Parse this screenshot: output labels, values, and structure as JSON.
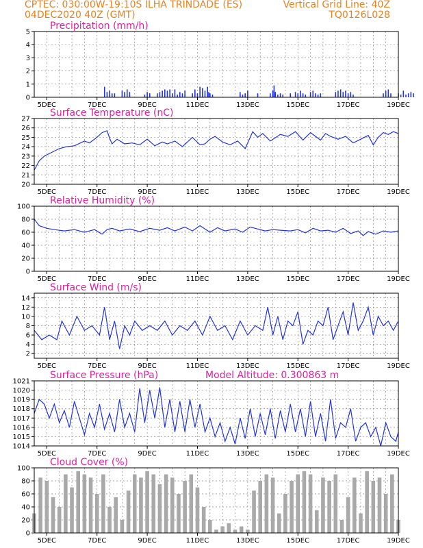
{
  "header": {
    "line1_left": "CPTEC:   030:00W-19:10S   ILHA TRINDADE (ES)",
    "line1_right": "Vertical Grid Line: 40Z",
    "line2_left": "04DEC2020  40Z  (GMT)",
    "line2_right": "TQ0126L028"
  },
  "colors": {
    "header": "#e8821e",
    "title": "#e020a0",
    "line": "#2233dd",
    "cloud": "#a9a9a9"
  },
  "chart_data": [
    {
      "type": "bar",
      "title": "Precipitation  (mm/h)",
      "ylim": [
        0,
        5
      ],
      "yticks": [
        0,
        1,
        2,
        3,
        4,
        5
      ],
      "x_range": [
        "04DEC2020 12Z",
        "19DEC2020 00Z"
      ],
      "xticks": [
        "5DEC",
        "7DEC",
        "9DEC",
        "11DEC",
        "13DEC",
        "15DEC",
        "17DEC",
        "19DEC"
      ],
      "grid": true,
      "x": [
        2.8,
        2.9,
        3.0,
        3.1,
        3.2,
        3.5,
        3.6,
        3.7,
        3.8,
        4.4,
        4.5,
        4.6,
        4.9,
        5.0,
        5.1,
        5.2,
        5.3,
        5.4,
        5.5,
        5.6,
        5.7,
        5.8,
        5.9,
        6.0,
        6.3,
        6.4,
        6.5,
        6.6,
        6.7,
        6.8,
        6.9,
        6.95,
        7.0,
        7.1,
        8.2,
        8.3,
        8.4,
        8.5,
        8.9,
        9.4,
        9.5,
        9.55,
        9.6,
        9.7,
        9.8,
        9.9,
        10.2,
        10.4,
        10.5,
        10.6,
        10.7,
        10.8,
        11.0,
        11.1,
        11.2,
        11.3,
        11.4,
        12.0,
        12.1,
        12.2,
        12.3,
        12.4,
        12.5,
        12.6,
        12.7,
        13.9,
        14.0,
        14.1,
        14.2,
        14.5,
        14.6,
        14.7,
        14.8,
        14.9,
        15.0,
        15.1
      ],
      "values": [
        0.8,
        0.4,
        0.5,
        0.3,
        0.3,
        0.5,
        0.4,
        0.6,
        0.4,
        0.2,
        0.4,
        0.3,
        0.3,
        0.4,
        0.5,
        0.6,
        0.5,
        0.6,
        0.3,
        0.6,
        0.2,
        0.4,
        0.3,
        0.5,
        0.3,
        0.6,
        0.3,
        0.8,
        0.7,
        0.5,
        0.8,
        0.4,
        0.3,
        0.2,
        0.4,
        0.2,
        0.3,
        0.5,
        0.3,
        0.3,
        0.5,
        0.9,
        0.4,
        0.2,
        0.3,
        0.2,
        0.3,
        0.4,
        0.3,
        0.5,
        0.3,
        0.2,
        0.4,
        0.5,
        0.3,
        0.2,
        0.3,
        0.4,
        0.5,
        0.6,
        0.4,
        0.5,
        0.3,
        0.4,
        0.2,
        0.3,
        0.5,
        0.6,
        0.3,
        0.3,
        0.2,
        0.5,
        0.2,
        0.3,
        0.4,
        0.3
      ]
    },
    {
      "type": "line",
      "title": "Surface Temperature  (nC)",
      "ylim": [
        20,
        27
      ],
      "yticks": [
        20,
        21,
        22,
        23,
        24,
        25,
        26,
        27
      ],
      "x_range": [
        "04DEC2020 12Z",
        "19DEC2020 00Z"
      ],
      "xticks": [
        "5DEC",
        "7DEC",
        "9DEC",
        "11DEC",
        "13DEC",
        "15DEC",
        "17DEC",
        "19DEC"
      ],
      "grid": true,
      "x": [
        0.0,
        0.2,
        0.4,
        0.7,
        1.0,
        1.3,
        1.6,
        2.0,
        2.2,
        2.5,
        2.7,
        2.9,
        3.0,
        3.1,
        3.3,
        3.6,
        3.9,
        4.2,
        4.5,
        4.8,
        5.1,
        5.3,
        5.6,
        5.9,
        6.1,
        6.3,
        6.6,
        6.8,
        7.0,
        7.2,
        7.5,
        7.8,
        8.1,
        8.4,
        8.7,
        8.9,
        9.1,
        9.4,
        9.8,
        10.1,
        10.4,
        10.7,
        11.0,
        11.4,
        11.6,
        11.8,
        12.1,
        12.4,
        12.7,
        13.0,
        13.3,
        13.5,
        13.7,
        13.9,
        14.1,
        14.3,
        14.5
      ],
      "values": [
        21.5,
        22.5,
        23.0,
        23.4,
        23.8,
        24.0,
        24.1,
        24.6,
        24.4,
        25.0,
        25.5,
        25.7,
        24.9,
        24.3,
        24.8,
        24.3,
        24.4,
        24.2,
        24.8,
        24.1,
        24.5,
        24.3,
        24.6,
        24.0,
        24.5,
        25.0,
        24.2,
        24.3,
        24.8,
        25.1,
        24.5,
        24.2,
        24.6,
        23.8,
        25.6,
        25.0,
        25.4,
        24.6,
        25.3,
        25.1,
        25.6,
        24.7,
        25.5,
        24.7,
        25.4,
        25.1,
        24.8,
        25.1,
        24.4,
        24.8,
        25.2,
        24.2,
        25.0,
        25.5,
        25.3,
        25.6,
        25.4
      ]
    },
    {
      "type": "line",
      "title": "Relative Humidity  (%)",
      "ylim": [
        0,
        100
      ],
      "yticks": [
        0,
        20,
        40,
        60,
        80,
        100
      ],
      "x_range": [
        "04DEC2020 12Z",
        "19DEC2020 00Z"
      ],
      "xticks": [
        "5DEC",
        "7DEC",
        "9DEC",
        "11DEC",
        "13DEC",
        "15DEC",
        "17DEC",
        "19DEC"
      ],
      "grid": true,
      "x": [
        0.0,
        0.2,
        0.5,
        0.8,
        1.2,
        1.6,
        2.0,
        2.4,
        2.7,
        2.9,
        3.1,
        3.4,
        3.8,
        4.2,
        4.6,
        5.0,
        5.3,
        5.6,
        6.0,
        6.3,
        6.6,
        7.0,
        7.3,
        7.6,
        8.0,
        8.3,
        8.6,
        8.9,
        9.2,
        9.5,
        9.8,
        10.2,
        10.5,
        10.8,
        11.1,
        11.4,
        11.7,
        12.0,
        12.3,
        12.6,
        12.9,
        13.1,
        13.3,
        13.6,
        13.9,
        14.2,
        14.5
      ],
      "values": [
        80,
        70,
        66,
        64,
        62,
        64,
        60,
        64,
        57,
        64,
        66,
        62,
        65,
        61,
        66,
        63,
        67,
        62,
        68,
        62,
        70,
        60,
        67,
        62,
        65,
        60,
        68,
        65,
        62,
        64,
        63,
        62,
        64,
        59,
        66,
        62,
        63,
        60,
        66,
        58,
        62,
        55,
        61,
        57,
        62,
        60,
        62
      ]
    },
    {
      "type": "line",
      "title": "Surface Wind  (m/s)",
      "ylim": [
        1,
        15
      ],
      "yticks": [
        2,
        4,
        6,
        8,
        10,
        12,
        14
      ],
      "x_range": [
        "04DEC2020 12Z",
        "19DEC2020 00Z"
      ],
      "xticks": [
        "5DEC",
        "7DEC",
        "9DEC",
        "11DEC",
        "13DEC",
        "15DEC",
        "17DEC",
        "19DEC"
      ],
      "grid": true,
      "x": [
        0.0,
        0.3,
        0.6,
        0.9,
        1.1,
        1.4,
        1.7,
        2.0,
        2.3,
        2.6,
        2.8,
        3.0,
        3.2,
        3.4,
        3.6,
        3.8,
        4.0,
        4.3,
        4.6,
        4.9,
        5.2,
        5.5,
        5.8,
        6.1,
        6.4,
        6.7,
        7.0,
        7.3,
        7.6,
        7.9,
        8.2,
        8.5,
        8.8,
        9.1,
        9.3,
        9.5,
        9.7,
        9.9,
        10.1,
        10.3,
        10.5,
        10.7,
        10.9,
        11.1,
        11.3,
        11.5,
        11.7,
        11.9,
        12.1,
        12.3,
        12.5,
        12.7,
        12.9,
        13.1,
        13.3,
        13.5,
        13.7,
        13.9,
        14.1,
        14.3,
        14.5
      ],
      "values": [
        7,
        5,
        6,
        5,
        9,
        6,
        10,
        7,
        8,
        6,
        12,
        5,
        9,
        3,
        8,
        6,
        9,
        7,
        8,
        7,
        9,
        6,
        8,
        7,
        9,
        6,
        10,
        7,
        8,
        5,
        9,
        6,
        8,
        7,
        12,
        6,
        10,
        5,
        9,
        8,
        11,
        4,
        7,
        6,
        9,
        8,
        12,
        5,
        8,
        11,
        6,
        13,
        7,
        9,
        12,
        6,
        10,
        8,
        9,
        7,
        9
      ]
    },
    {
      "type": "line",
      "title": "Surface Pressure  (hPa)",
      "annotation": "Model Altitude: 0.300863  m",
      "ylim": [
        1014,
        1021
      ],
      "yticks": [
        1014,
        1015,
        1016,
        1017,
        1018,
        1019,
        1020,
        1021
      ],
      "x_range": [
        "04DEC2020 12Z",
        "19DEC2020 00Z"
      ],
      "xticks": [
        "5DEC",
        "7DEC",
        "9DEC",
        "11DEC",
        "13DEC",
        "15DEC",
        "17DEC",
        "19DEC"
      ],
      "grid": true,
      "x": [
        0.0,
        0.2,
        0.4,
        0.6,
        0.8,
        1.0,
        1.2,
        1.4,
        1.6,
        1.8,
        2.0,
        2.2,
        2.4,
        2.6,
        2.8,
        3.0,
        3.2,
        3.4,
        3.6,
        3.8,
        4.0,
        4.2,
        4.4,
        4.6,
        4.8,
        5.0,
        5.2,
        5.4,
        5.6,
        5.8,
        6.0,
        6.2,
        6.4,
        6.6,
        6.8,
        7.0,
        7.2,
        7.4,
        7.6,
        7.8,
        8.0,
        8.2,
        8.4,
        8.6,
        8.8,
        9.0,
        9.2,
        9.4,
        9.6,
        9.8,
        10.0,
        10.2,
        10.4,
        10.6,
        10.8,
        11.0,
        11.2,
        11.4,
        11.6,
        11.8,
        12.0,
        12.2,
        12.4,
        12.6,
        12.8,
        13.0,
        13.2,
        13.4,
        13.6,
        13.8,
        14.0,
        14.2,
        14.4,
        14.5
      ],
      "values": [
        1017.5,
        1019.0,
        1018.5,
        1017.0,
        1018.5,
        1016.5,
        1017.8,
        1016.0,
        1018.8,
        1017.0,
        1015.2,
        1017.5,
        1016.0,
        1018.5,
        1015.8,
        1017.5,
        1015.5,
        1019.0,
        1016.0,
        1017.5,
        1015.5,
        1020.2,
        1016.5,
        1020.0,
        1017.0,
        1020.3,
        1016.0,
        1019.0,
        1015.5,
        1018.8,
        1015.5,
        1019.0,
        1016.0,
        1018.5,
        1015.5,
        1017.0,
        1015.0,
        1016.5,
        1014.5,
        1016.0,
        1014.2,
        1017.0,
        1014.8,
        1018.0,
        1015.0,
        1017.5,
        1015.2,
        1018.0,
        1014.8,
        1017.8,
        1015.5,
        1018.5,
        1015.5,
        1018.0,
        1015.0,
        1018.8,
        1015.0,
        1017.5,
        1014.5,
        1019.0,
        1014.8,
        1016.5,
        1016.0,
        1018.0,
        1014.5,
        1016.0,
        1016.5,
        1015.0,
        1016.0,
        1014.0,
        1016.5,
        1015.0,
        1014.5,
        1015.5
      ]
    },
    {
      "type": "bar",
      "title": "Cloud Cover  (%)",
      "ylim": [
        0,
        100
      ],
      "yticks": [
        0,
        20,
        40,
        60,
        80,
        100
      ],
      "x_range": [
        "04DEC2020 12Z",
        "19DEC2020 00Z"
      ],
      "xticks": [
        "5DEC",
        "7DEC",
        "9DEC",
        "11DEC",
        "13DEC",
        "15DEC",
        "17DEC",
        "19DEC"
      ],
      "grid": true,
      "x": [
        0.0,
        0.25,
        0.5,
        0.75,
        1.0,
        1.25,
        1.5,
        1.75,
        2.0,
        2.25,
        2.5,
        2.75,
        3.0,
        3.25,
        3.5,
        3.75,
        4.0,
        4.25,
        4.5,
        4.75,
        5.0,
        5.25,
        5.5,
        5.75,
        6.0,
        6.25,
        6.5,
        6.75,
        7.0,
        7.25,
        7.5,
        7.75,
        8.0,
        8.25,
        8.5,
        8.75,
        9.0,
        9.25,
        9.5,
        9.75,
        10.0,
        10.25,
        10.5,
        10.75,
        11.0,
        11.25,
        11.5,
        11.75,
        12.0,
        12.25,
        12.5,
        12.75,
        13.0,
        13.25,
        13.5,
        13.75,
        14.0,
        14.25,
        14.5
      ],
      "values": [
        30,
        85,
        80,
        55,
        40,
        90,
        70,
        95,
        90,
        85,
        60,
        90,
        40,
        55,
        20,
        65,
        90,
        85,
        95,
        90,
        75,
        90,
        85,
        60,
        80,
        90,
        70,
        40,
        20,
        5,
        10,
        15,
        5,
        10,
        5,
        65,
        80,
        90,
        85,
        30,
        60,
        80,
        90,
        95,
        90,
        35,
        85,
        80,
        90,
        20,
        55,
        85,
        30,
        95,
        80,
        85,
        60,
        90,
        20
      ]
    }
  ]
}
